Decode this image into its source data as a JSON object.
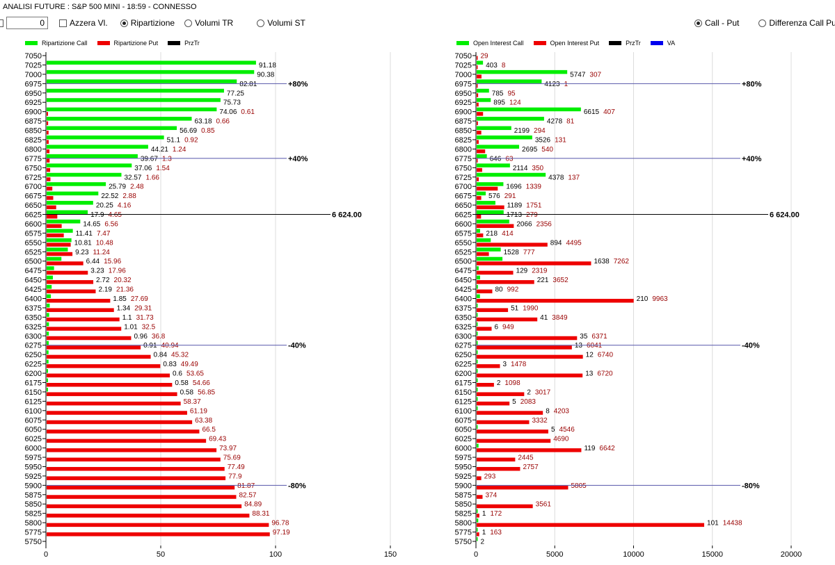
{
  "header": {
    "title": "ANALISI FUTURE : S&P 500 MINI - 18:59 - CONNESSO",
    "number_value": "0",
    "azzera_label": "Azzera Vl.",
    "radio_ripartizione": "Ripartizione",
    "radio_volumi_tr": "Volumi TR",
    "radio_volumi_st": "Volumi ST",
    "radio_call_put": "Call - Put",
    "radio_differenza": "Differenza Call Put",
    "selected_left": "Ripartizione",
    "selected_right": "Call - Put"
  },
  "colors": {
    "call": "#00ee00",
    "put": "#ee0000",
    "przTr": "#000000",
    "va": "#0000ee",
    "ref_line": "#5555aa"
  },
  "chart_data": [
    {
      "type": "bar",
      "orientation": "horizontal",
      "legend": [
        "Ripartizione Call",
        "Ripartizione Put",
        "PrzTr"
      ],
      "legend_placement": "top-left",
      "xlim": [
        0,
        150
      ],
      "xticks": [
        "0",
        "50",
        "100",
        "150"
      ],
      "grid": true,
      "categories": [
        7050,
        7025,
        7000,
        6975,
        6950,
        6925,
        6900,
        6875,
        6850,
        6825,
        6800,
        6775,
        6750,
        6725,
        6700,
        6675,
        6650,
        6625,
        6600,
        6575,
        6550,
        6525,
        6500,
        6475,
        6450,
        6425,
        6400,
        6375,
        6350,
        6325,
        6300,
        6275,
        6250,
        6225,
        6200,
        6175,
        6150,
        6125,
        6100,
        6075,
        6050,
        6025,
        6000,
        5975,
        5950,
        5925,
        5900,
        5875,
        5850,
        5825,
        5800,
        5775,
        5750
      ],
      "series": [
        {
          "name": "Ripartizione Call",
          "values": [
            null,
            91.18,
            90.38,
            82.81,
            77.25,
            75.73,
            74.06,
            63.18,
            56.69,
            51.1,
            44.21,
            39.67,
            37.06,
            32.57,
            25.79,
            22.52,
            20.25,
            17.9,
            14.65,
            11.41,
            10.81,
            9.23,
            6.44,
            3.23,
            2.72,
            2.19,
            1.85,
            1.34,
            1.1,
            1.01,
            0.96,
            0.91,
            0.84,
            0.83,
            0.6,
            0.58,
            0.58,
            null,
            null,
            null,
            null,
            null,
            null,
            null,
            null,
            null,
            null,
            null,
            null,
            null,
            null,
            null,
            null
          ]
        },
        {
          "name": "Ripartizione Put",
          "values": [
            null,
            null,
            null,
            null,
            null,
            null,
            0.61,
            0.66,
            0.85,
            0.92,
            1.24,
            1.3,
            1.54,
            1.66,
            2.48,
            2.88,
            4.16,
            4.65,
            6.56,
            7.47,
            10.48,
            11.24,
            15.96,
            17.96,
            20.32,
            21.36,
            27.69,
            29.31,
            31.73,
            32.5,
            36.8,
            40.94,
            45.32,
            49.49,
            53.65,
            54.66,
            56.85,
            58.37,
            61.19,
            63.38,
            66.5,
            69.43,
            73.97,
            75.69,
            77.49,
            77.9,
            81.87,
            82.57,
            84.89,
            88.31,
            96.78,
            97.19,
            null
          ]
        }
      ],
      "ref_lines": [
        {
          "strike": 6975,
          "label": "+80%",
          "kind": "level"
        },
        {
          "strike": 6775,
          "label": "+40%",
          "kind": "level"
        },
        {
          "strike": 6625,
          "label": "6 624.00",
          "kind": "przTr"
        },
        {
          "strike": 6275,
          "label": "-40%",
          "kind": "level"
        },
        {
          "strike": 5900,
          "label": "-80%",
          "kind": "level"
        }
      ]
    },
    {
      "type": "bar",
      "orientation": "horizontal",
      "legend": [
        "Open Interest Call",
        "Open Interest Put",
        "PrzTr",
        "VA"
      ],
      "legend_placement": "top-left",
      "xlim": [
        0,
        20000
      ],
      "xticks": [
        "0",
        "5000",
        "10000",
        "15000",
        "20000"
      ],
      "grid": true,
      "categories": [
        7050,
        7025,
        7000,
        6975,
        6950,
        6925,
        6900,
        6875,
        6850,
        6825,
        6800,
        6775,
        6750,
        6725,
        6700,
        6675,
        6650,
        6625,
        6600,
        6575,
        6550,
        6525,
        6500,
        6475,
        6450,
        6425,
        6400,
        6375,
        6350,
        6325,
        6300,
        6275,
        6250,
        6225,
        6200,
        6175,
        6150,
        6125,
        6100,
        6075,
        6050,
        6025,
        6000,
        5975,
        5950,
        5925,
        5900,
        5875,
        5850,
        5825,
        5800,
        5775,
        5750
      ],
      "series": [
        {
          "name": "Open Interest Call",
          "values": [
            null,
            403,
            5747,
            4123,
            785,
            895,
            6615,
            4278,
            2199,
            3526,
            2695,
            646,
            2114,
            4378,
            1696,
            576,
            1189,
            1713,
            2066,
            218,
            894,
            1528,
            1638,
            129,
            221,
            80,
            210,
            51,
            41,
            6,
            35,
            13,
            12,
            3,
            13,
            2,
            2,
            5,
            8,
            null,
            5,
            null,
            119,
            null,
            null,
            null,
            null,
            null,
            null,
            1,
            101,
            1,
            2
          ]
        },
        {
          "name": "Open Interest Put",
          "values": [
            29,
            8,
            307,
            1,
            95,
            124,
            407,
            81,
            294,
            131,
            540,
            63,
            350,
            137,
            1339,
            291,
            1751,
            279,
            2356,
            414,
            4495,
            777,
            7262,
            2319,
            3652,
            992,
            9963,
            1990,
            3849,
            949,
            6371,
            6041,
            6740,
            1478,
            6720,
            1098,
            3017,
            2083,
            4203,
            3332,
            4546,
            4690,
            6642,
            2445,
            2757,
            293,
            5805,
            374,
            3561,
            172,
            14438,
            163,
            null
          ]
        }
      ],
      "ref_lines": [
        {
          "strike": 6975,
          "label": "+80%",
          "kind": "level"
        },
        {
          "strike": 6775,
          "label": "+40%",
          "kind": "level"
        },
        {
          "strike": 6625,
          "label": "6 624.00",
          "kind": "przTr"
        },
        {
          "strike": 6275,
          "label": "-40%",
          "kind": "level"
        },
        {
          "strike": 5900,
          "label": "-80%",
          "kind": "level"
        }
      ]
    }
  ]
}
